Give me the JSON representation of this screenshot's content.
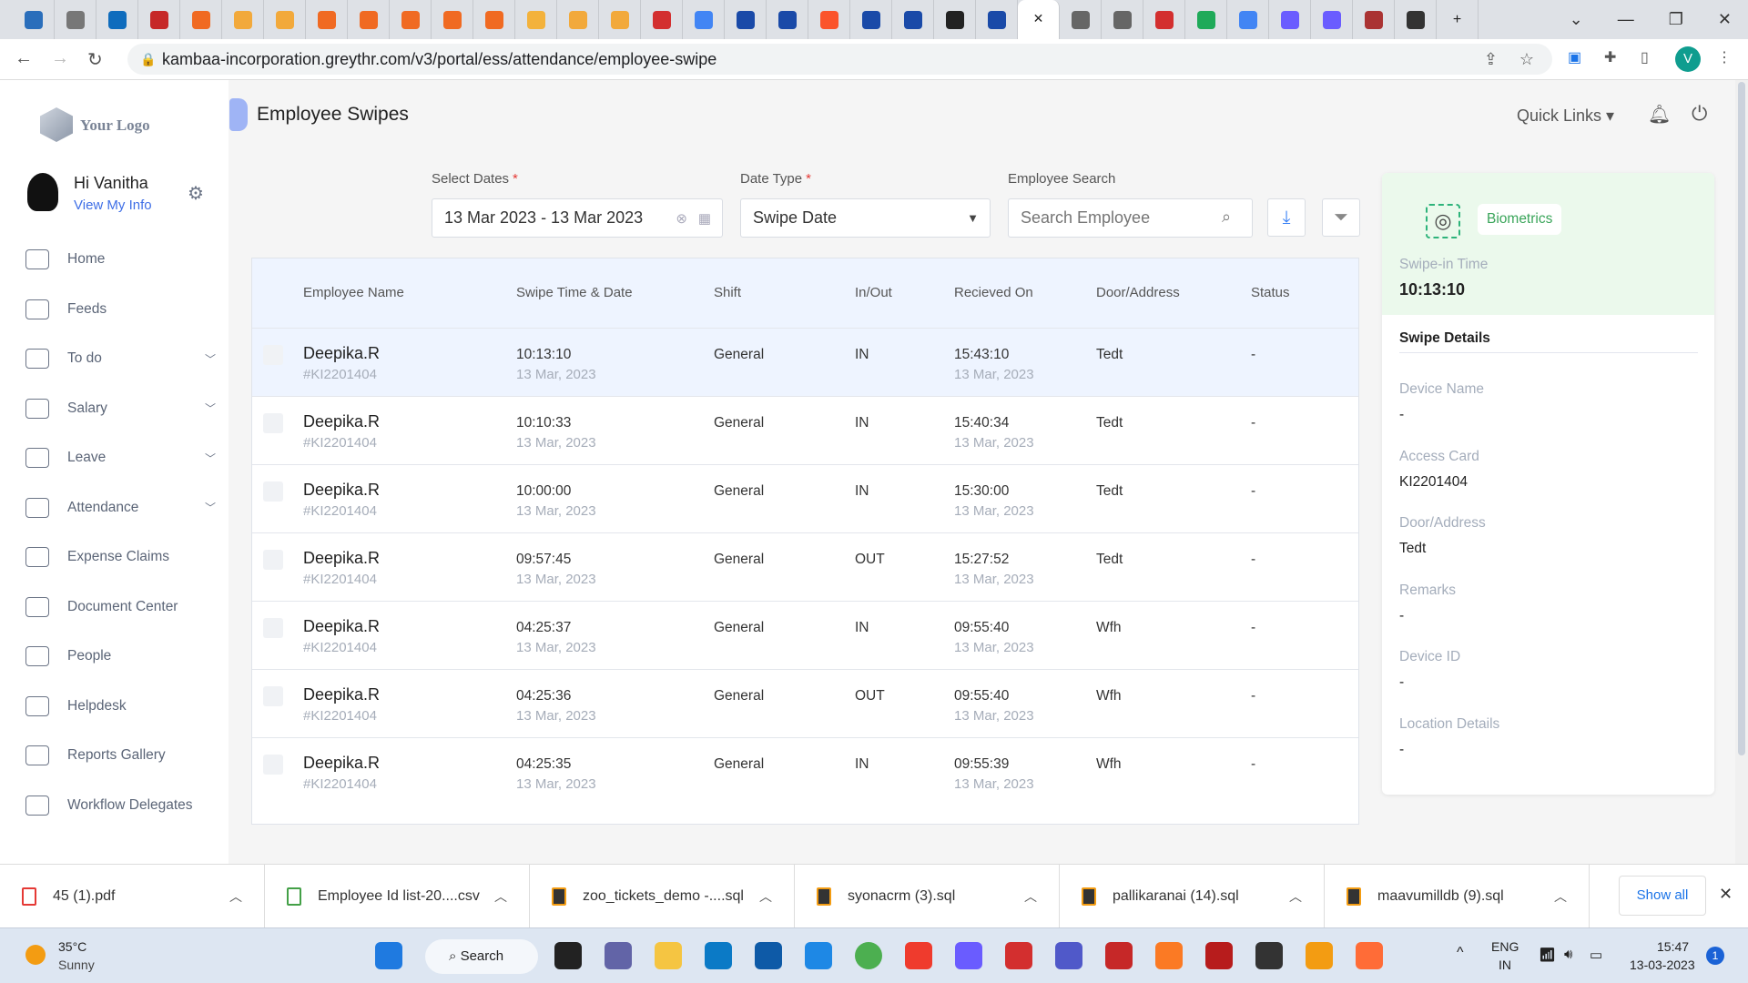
{
  "browser": {
    "tabs": [
      "profile",
      "volume",
      "outlook",
      "redbus",
      "cpanel",
      "pma",
      "pma",
      "cpanel",
      "cpanel",
      "cpanel",
      "cpanel",
      "cpanel",
      "box",
      "pma",
      "pma",
      "maps",
      "google",
      "tally",
      "tally",
      "brave",
      "tally",
      "tally",
      "jf",
      "tally",
      "active",
      "globe",
      "globe",
      "maps",
      "hangouts",
      "google",
      "messenger",
      "messenger",
      "kikoff",
      "clock"
    ],
    "active_tab_index": 24,
    "tab_colors": {
      "cpanel": "#f06a22",
      "pma": "#f2a93b",
      "google": "#4285f4",
      "tally": "#1a4aa8",
      "globe": "#666",
      "maps": "#d32f2f",
      "outlook": "#0f6cbd",
      "redbus": "#c62828",
      "box": "#f3b23c",
      "brave": "#fb542b",
      "messenger": "#6a5cff",
      "hangouts": "#1faa59",
      "clock": "#333",
      "kikoff": "#a33",
      "profile": "#2a6ebb",
      "volume": "#777",
      "jf": "#222",
      "active": "#fff"
    },
    "url": "kambaa-incorporation.greythr.com/v3/portal/ess/attendance/employee-swipe",
    "profile_initial": "V"
  },
  "sidebar": {
    "logo_text": "Your Logo",
    "greeting": "Hi Vanitha",
    "view_info": "View My Info",
    "items": [
      {
        "label": "Home",
        "icon": "home-icon",
        "expandable": false
      },
      {
        "label": "Feeds",
        "icon": "feeds-icon",
        "expandable": false
      },
      {
        "label": "To do",
        "icon": "clipboard-icon",
        "expandable": true
      },
      {
        "label": "Salary",
        "icon": "salary-icon",
        "expandable": true
      },
      {
        "label": "Leave",
        "icon": "calendar-icon",
        "expandable": true
      },
      {
        "label": "Attendance",
        "icon": "attendance-icon",
        "expandable": true
      },
      {
        "label": "Expense Claims",
        "icon": "wallet-icon",
        "expandable": false
      },
      {
        "label": "Document Center",
        "icon": "book-icon",
        "expandable": false
      },
      {
        "label": "People",
        "icon": "people-icon",
        "expandable": false
      },
      {
        "label": "Helpdesk",
        "icon": "info-icon",
        "expandable": false
      },
      {
        "label": "Reports Gallery",
        "icon": "pie-icon",
        "expandable": false
      },
      {
        "label": "Workflow Delegates",
        "icon": "workflow-icon",
        "expandable": false
      }
    ]
  },
  "header": {
    "title": "Employee Swipes",
    "quick_links": "Quick Links"
  },
  "filters": {
    "dates_label": "Select Dates",
    "dates_value": "13 Mar 2023 - 13 Mar 2023",
    "date_type_label": "Date Type",
    "date_type_value": "Swipe Date",
    "search_label": "Employee Search",
    "search_placeholder": "Search Employee"
  },
  "table": {
    "columns": [
      "Employee Name",
      "Swipe Time & Date",
      "Shift",
      "In/Out",
      "Recieved On",
      "Door/Address",
      "Status"
    ],
    "rows": [
      {
        "name": "Deepika.R",
        "id": "#KI2201404",
        "time": "10:13:10",
        "date": "13 Mar, 2023",
        "shift": "General",
        "inout": "IN",
        "recv_time": "15:43:10",
        "recv_date": "13 Mar, 2023",
        "door": "Tedt",
        "status": "-"
      },
      {
        "name": "Deepika.R",
        "id": "#KI2201404",
        "time": "10:10:33",
        "date": "13 Mar, 2023",
        "shift": "General",
        "inout": "IN",
        "recv_time": "15:40:34",
        "recv_date": "13 Mar, 2023",
        "door": "Tedt",
        "status": "-"
      },
      {
        "name": "Deepika.R",
        "id": "#KI2201404",
        "time": "10:00:00",
        "date": "13 Mar, 2023",
        "shift": "General",
        "inout": "IN",
        "recv_time": "15:30:00",
        "recv_date": "13 Mar, 2023",
        "door": "Tedt",
        "status": "-"
      },
      {
        "name": "Deepika.R",
        "id": "#KI2201404",
        "time": "09:57:45",
        "date": "13 Mar, 2023",
        "shift": "General",
        "inout": "OUT",
        "recv_time": "15:27:52",
        "recv_date": "13 Mar, 2023",
        "door": "Tedt",
        "status": "-"
      },
      {
        "name": "Deepika.R",
        "id": "#KI2201404",
        "time": "04:25:37",
        "date": "13 Mar, 2023",
        "shift": "General",
        "inout": "IN",
        "recv_time": "09:55:40",
        "recv_date": "13 Mar, 2023",
        "door": "Wfh",
        "status": "-"
      },
      {
        "name": "Deepika.R",
        "id": "#KI2201404",
        "time": "04:25:36",
        "date": "13 Mar, 2023",
        "shift": "General",
        "inout": "OUT",
        "recv_time": "09:55:40",
        "recv_date": "13 Mar, 2023",
        "door": "Wfh",
        "status": "-"
      },
      {
        "name": "Deepika.R",
        "id": "#KI2201404",
        "time": "04:25:35",
        "date": "13 Mar, 2023",
        "shift": "General",
        "inout": "IN",
        "recv_time": "09:55:39",
        "recv_date": "13 Mar, 2023",
        "door": "Wfh",
        "status": "-"
      }
    ]
  },
  "panel": {
    "badge": "Biometrics",
    "swipe_in_label": "Swipe-in Time",
    "swipe_in_value": "10:13:10",
    "details_title": "Swipe Details",
    "details": [
      {
        "label": "Device Name",
        "value": "-"
      },
      {
        "label": "Access Card",
        "value": "KI2201404"
      },
      {
        "label": "Door/Address",
        "value": "Tedt"
      },
      {
        "label": "Remarks",
        "value": "-"
      },
      {
        "label": "Device ID",
        "value": "-"
      },
      {
        "label": "Location Details",
        "value": "-"
      }
    ]
  },
  "downloads": {
    "items": [
      {
        "name": "45 (1).pdf",
        "type": "pdf"
      },
      {
        "name": "Employee Id list-20....csv",
        "type": "csv"
      },
      {
        "name": "zoo_tickets_demo -....sql",
        "type": "sql"
      },
      {
        "name": "syonacrm (3).sql",
        "type": "sql"
      },
      {
        "name": "pallikaranai (14).sql",
        "type": "sql"
      },
      {
        "name": "maavumilldb (9).sql",
        "type": "sql"
      }
    ],
    "show_all": "Show all"
  },
  "taskbar": {
    "weather_temp": "35°C",
    "weather_desc": "Sunny",
    "search": "Search",
    "lang1": "ENG",
    "lang2": "IN",
    "time": "15:47",
    "date": "13-03-2023",
    "notif_count": "1",
    "apps": [
      "start",
      "search",
      "taskview",
      "meet",
      "explorer",
      "edge",
      "store",
      "mail",
      "chrome",
      "anydesk",
      "copilot",
      "wps",
      "teams",
      "record",
      "xampp",
      "filezilla",
      "terminal",
      "sublime",
      "postman"
    ]
  }
}
